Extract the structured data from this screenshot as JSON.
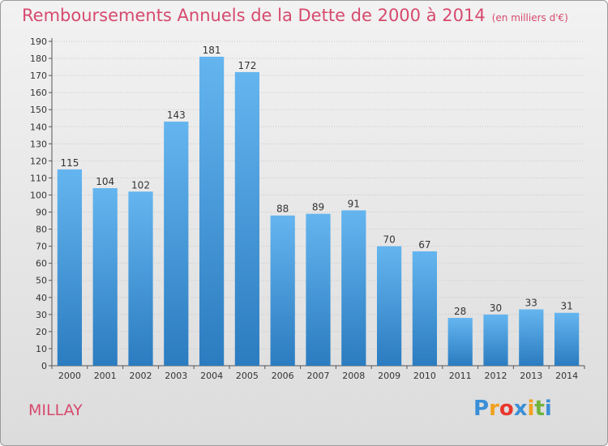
{
  "title": "Remboursements Annuels de la Dette de 2000 à 2014",
  "subtitle": "(en milliers d'€)",
  "commune": "MILLAY",
  "logo": {
    "letters": [
      "P",
      "r",
      "o",
      "x",
      "i",
      "t",
      "i"
    ],
    "colors": [
      "#3a8fd6",
      "#f0a11d",
      "#e8372e",
      "#3a8fd6",
      "#f0a11d",
      "#6fb33c",
      "#3a8fd6"
    ]
  },
  "colors": {
    "bar_top": "#64b5ef",
    "bar_bottom": "#2b7cc0",
    "grid": "#c8c8c8",
    "title": "#d64a6e"
  },
  "chart_data": {
    "type": "bar",
    "categories": [
      "2000",
      "2001",
      "2002",
      "2003",
      "2004",
      "2005",
      "2006",
      "2007",
      "2008",
      "2009",
      "2010",
      "2011",
      "2012",
      "2013",
      "2014"
    ],
    "values": [
      115,
      104,
      102,
      143,
      181,
      172,
      88,
      89,
      91,
      70,
      67,
      28,
      30,
      33,
      31
    ],
    "ylim": [
      0,
      190
    ],
    "yticks": [
      0,
      10,
      20,
      30,
      40,
      50,
      60,
      70,
      80,
      90,
      100,
      110,
      120,
      130,
      140,
      150,
      160,
      170,
      180,
      190
    ],
    "grid": true,
    "title": "Remboursements Annuels de la Dette de 2000 à 2014",
    "xlabel": "",
    "ylabel": ""
  }
}
